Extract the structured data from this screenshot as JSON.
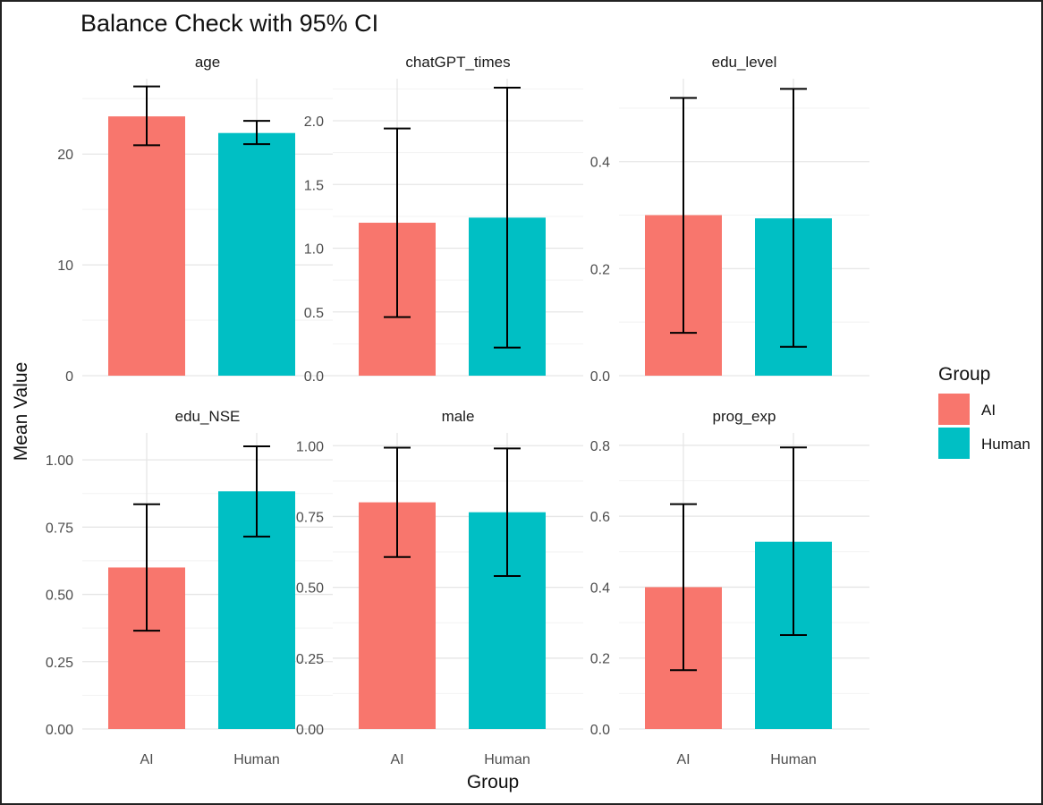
{
  "chart_data": {
    "type": "bar",
    "title": "Balance Check with 95% CI",
    "xlabel": "Group",
    "ylabel": "Mean Value",
    "legend": {
      "title": "Group",
      "position": "right",
      "entries": [
        {
          "name": "AI",
          "color": "#F8766D"
        },
        {
          "name": "Human",
          "color": "#00BFC4"
        }
      ]
    },
    "categories": [
      "AI",
      "Human"
    ],
    "grid": true,
    "facets": [
      {
        "name": "age",
        "ylim": [
          0,
          26.8
        ],
        "yticks": [
          0,
          10,
          20
        ],
        "yticklabels": [
          "0",
          "10",
          "20"
        ],
        "values": [
          23.4,
          21.9
        ],
        "ci_low": [
          20.8,
          20.9
        ],
        "ci_high": [
          26.1,
          23.0
        ]
      },
      {
        "name": "chatGPT_times",
        "ylim": [
          0,
          2.33
        ],
        "yticks": [
          0,
          0.5,
          1.0,
          1.5,
          2.0
        ],
        "yticklabels": [
          "0.0",
          "0.5",
          "1.0",
          "1.5",
          "2.0"
        ],
        "values": [
          1.2,
          1.24
        ],
        "ci_low": [
          0.46,
          0.22
        ],
        "ci_high": [
          1.94,
          2.26
        ]
      },
      {
        "name": "edu_level",
        "ylim": [
          0,
          0.555
        ],
        "yticks": [
          0,
          0.2,
          0.4
        ],
        "yticklabels": [
          "0.0",
          "0.2",
          "0.4"
        ],
        "values": [
          0.3,
          0.294
        ],
        "ci_low": [
          0.08,
          0.054
        ],
        "ci_high": [
          0.519,
          0.536
        ]
      },
      {
        "name": "edu_NSE",
        "ylim": [
          0,
          1.1
        ],
        "yticks": [
          0,
          0.25,
          0.5,
          0.75,
          1.0
        ],
        "yticklabels": [
          "0.00",
          "0.25",
          "0.50",
          "0.75",
          "1.00"
        ],
        "values": [
          0.6,
          0.883
        ],
        "ci_low": [
          0.365,
          0.715
        ],
        "ci_high": [
          0.835,
          1.05
        ]
      },
      {
        "name": "male",
        "ylim": [
          0,
          1.045
        ],
        "yticks": [
          0,
          0.25,
          0.5,
          0.75,
          1.0
        ],
        "yticklabels": [
          "0.00",
          "0.25",
          "0.50",
          "0.75",
          "1.00"
        ],
        "values": [
          0.8,
          0.765
        ],
        "ci_low": [
          0.607,
          0.54
        ],
        "ci_high": [
          0.993,
          0.99
        ]
      },
      {
        "name": "prog_exp",
        "ylim": [
          0,
          0.835
        ],
        "yticks": [
          0,
          0.2,
          0.4,
          0.6,
          0.8
        ],
        "yticklabels": [
          "0.0",
          "0.2",
          "0.4",
          "0.6",
          "0.8"
        ],
        "values": [
          0.4,
          0.528
        ],
        "ci_low": [
          0.166,
          0.265
        ],
        "ci_high": [
          0.634,
          0.794
        ]
      }
    ]
  }
}
